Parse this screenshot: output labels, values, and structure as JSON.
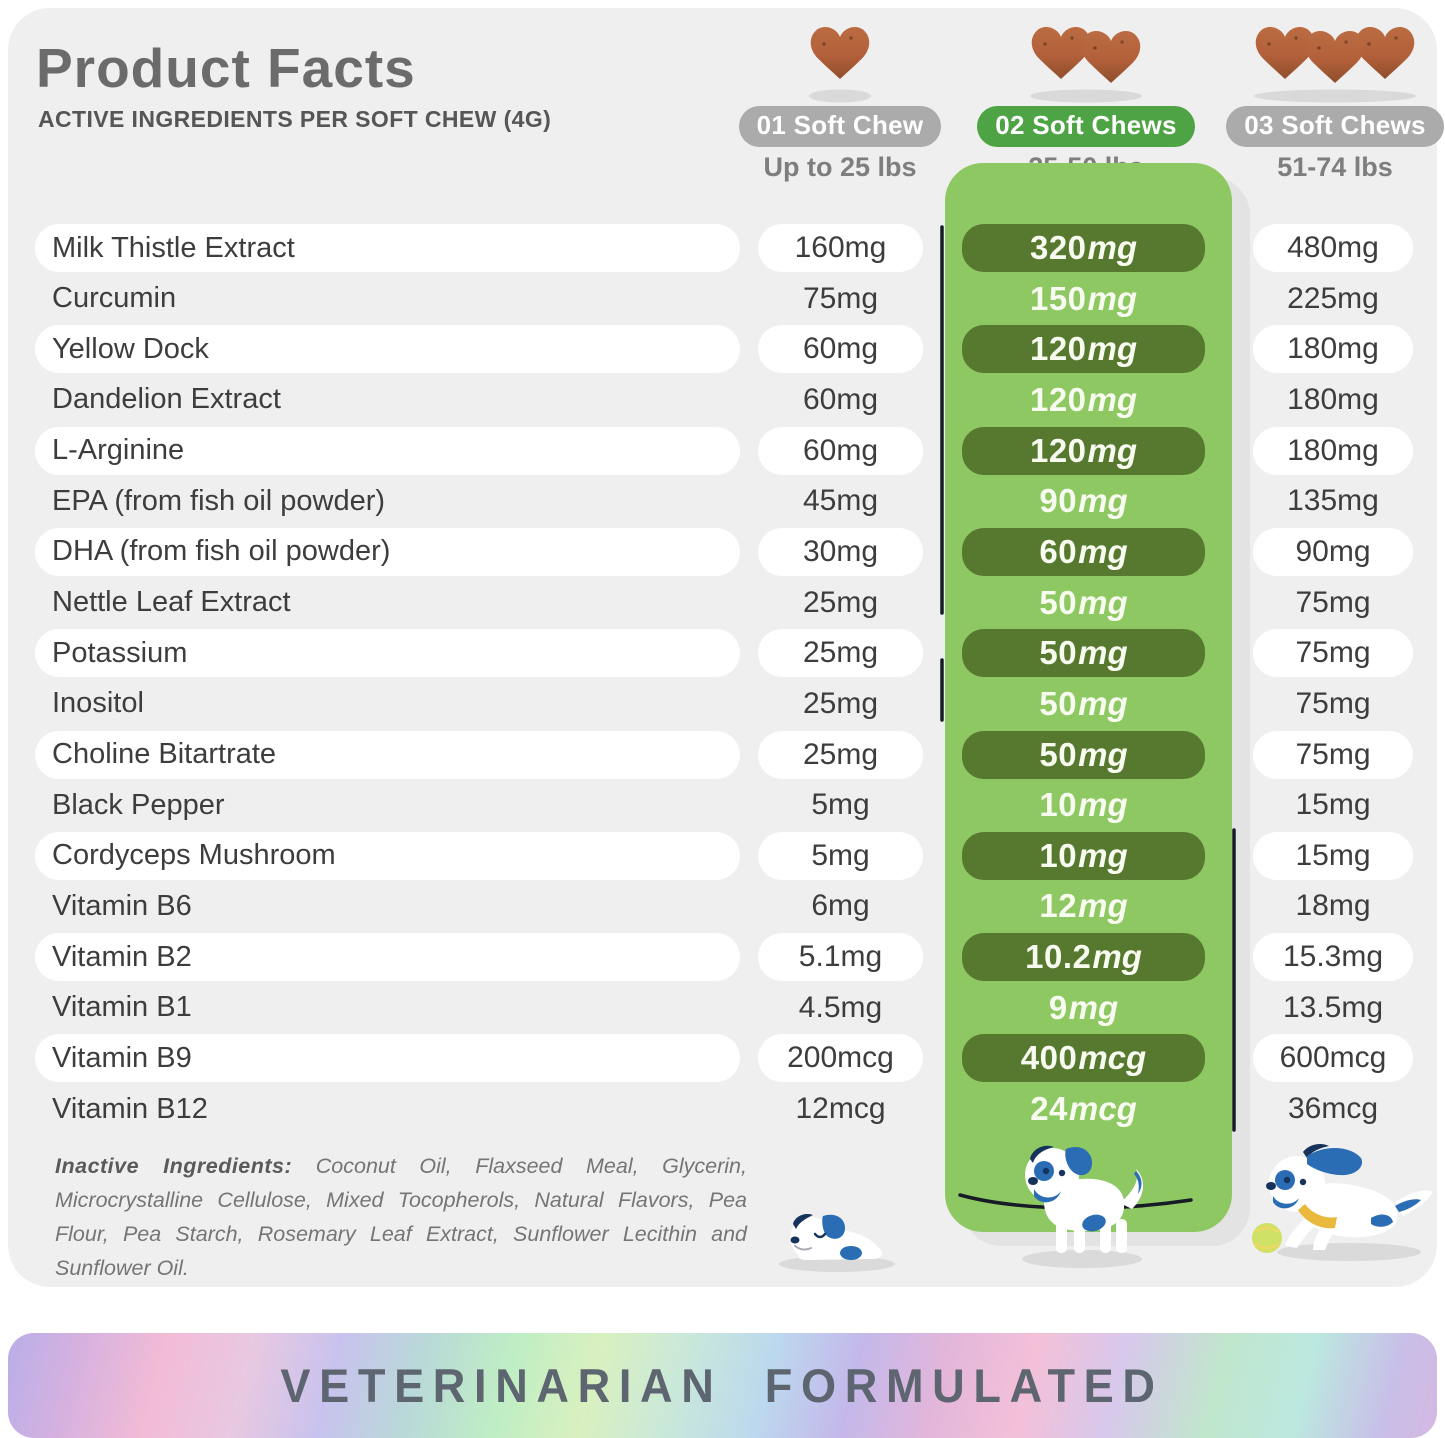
{
  "header": {
    "title": "Product Facts",
    "subtitle": "ACTIVE INGREDIENTS PER SOFT CHEW (4G)"
  },
  "dose_columns": [
    {
      "badge": "01 Soft Chew",
      "weight_range": "Up to 25 lbs",
      "chew_count": 1,
      "badge_color": "#ababab",
      "highlighted": false
    },
    {
      "badge": "02 Soft Chews",
      "weight_range": "25-50 lbs",
      "chew_count": 2,
      "badge_color": "#4ea344",
      "highlighted": true
    },
    {
      "badge": "03 Soft Chews",
      "weight_range": "51-74 lbs",
      "chew_count": 3,
      "badge_color": "#ababab",
      "highlighted": false
    }
  ],
  "ingredients": [
    {
      "name": "Milk Thistle Extract",
      "per_1_chew": "160mg",
      "per_2_chews": "320mg",
      "per_3_chews": "480mg"
    },
    {
      "name": "Curcumin",
      "per_1_chew": "75mg",
      "per_2_chews": "150mg",
      "per_3_chews": "225mg"
    },
    {
      "name": "Yellow Dock",
      "per_1_chew": "60mg",
      "per_2_chews": "120mg",
      "per_3_chews": "180mg"
    },
    {
      "name": "Dandelion Extract",
      "per_1_chew": "60mg",
      "per_2_chews": "120mg",
      "per_3_chews": "180mg"
    },
    {
      "name": "L-Arginine",
      "per_1_chew": "60mg",
      "per_2_chews": "120mg",
      "per_3_chews": "180mg"
    },
    {
      "name": "EPA (from fish oil powder)",
      "per_1_chew": "45mg",
      "per_2_chews": "90mg",
      "per_3_chews": "135mg"
    },
    {
      "name": "DHA (from fish oil powder)",
      "per_1_chew": "30mg",
      "per_2_chews": "60mg",
      "per_3_chews": "90mg"
    },
    {
      "name": "Nettle Leaf Extract",
      "per_1_chew": "25mg",
      "per_2_chews": "50mg",
      "per_3_chews": "75mg"
    },
    {
      "name": "Potassium",
      "per_1_chew": "25mg",
      "per_2_chews": "50mg",
      "per_3_chews": "75mg"
    },
    {
      "name": "Inositol",
      "per_1_chew": "25mg",
      "per_2_chews": "50mg",
      "per_3_chews": "75mg"
    },
    {
      "name": "Choline Bitartrate",
      "per_1_chew": "25mg",
      "per_2_chews": "50mg",
      "per_3_chews": "75mg"
    },
    {
      "name": "Black Pepper",
      "per_1_chew": "5mg",
      "per_2_chews": "10mg",
      "per_3_chews": "15mg"
    },
    {
      "name": "Cordyceps Mushroom",
      "per_1_chew": "5mg",
      "per_2_chews": "10mg",
      "per_3_chews": "15mg"
    },
    {
      "name": "Vitamin B6",
      "per_1_chew": "6mg",
      "per_2_chews": "12mg",
      "per_3_chews": "18mg"
    },
    {
      "name": "Vitamin B2",
      "per_1_chew": "5.1mg",
      "per_2_chews": "10.2mg",
      "per_3_chews": "15.3mg"
    },
    {
      "name": "Vitamin B1",
      "per_1_chew": "4.5mg",
      "per_2_chews": "9mg",
      "per_3_chews": "13.5mg"
    },
    {
      "name": "Vitamin B9",
      "per_1_chew": "200mcg",
      "per_2_chews": "400mcg",
      "per_3_chews": "600mcg"
    },
    {
      "name": "Vitamin B12",
      "per_1_chew": "12mcg",
      "per_2_chews": "24mcg",
      "per_3_chews": "36mcg"
    }
  ],
  "inactive": {
    "label": "Inactive Ingredients:",
    "text": "Coconut Oil, Flaxseed Meal, Glycerin, Microcrystalline Cellulose, Mixed Tocopherols, Natural Flavors, Pea Flour, Pea Starch, Rosemary Leaf Extract, Sunflower Lecithin and Sunflower Oil."
  },
  "footer": {
    "banner": "VETERINARIAN FORMULATED"
  },
  "colors": {
    "card_bg": "#efefef",
    "panel_green": "#8ec863",
    "dark_pill_green": "#57782f",
    "badge_green": "#4ea344",
    "badge_gray": "#ababab",
    "chew_brown": "#b2633a",
    "dog_blue": "#2a6db5",
    "banner_text": "#5d6570"
  }
}
